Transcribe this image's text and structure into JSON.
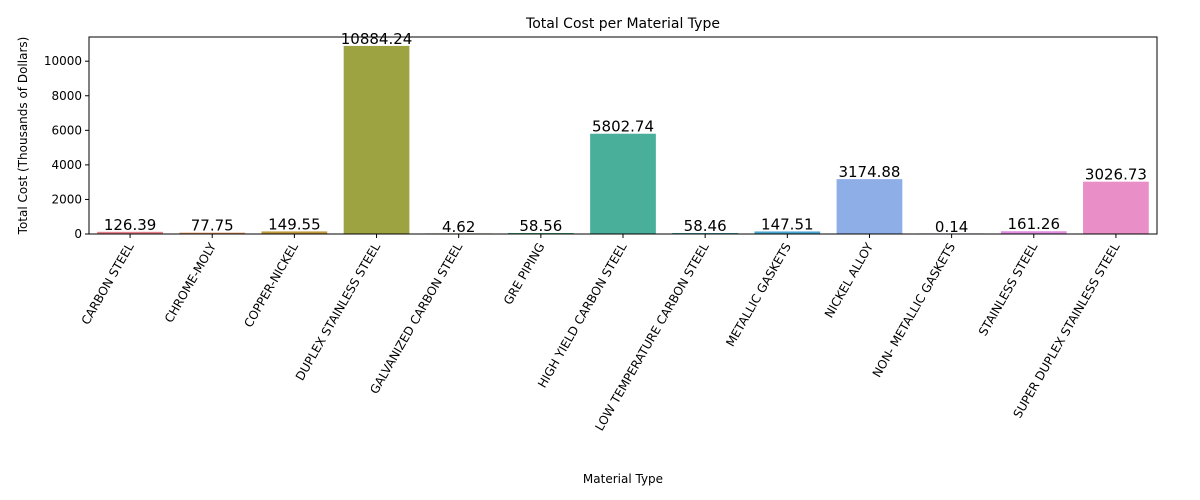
{
  "chart_data": {
    "type": "bar",
    "title": "Total Cost per Material Type",
    "xlabel": "Material Type",
    "ylabel": "Total Cost (Thousands of Dollars)",
    "ylim": [
      0,
      11400
    ],
    "yticks": [
      0,
      2000,
      4000,
      6000,
      8000,
      10000
    ],
    "grid": false,
    "categories": [
      "CARBON STEEL",
      "CHROME-MOLY",
      "COPPER-NICKEL",
      "DUPLEX STAINLESS STEEL",
      "GALVANIZED CARBON STEEL",
      "GRE PIPING",
      "HIGH YIELD CARBON STEEL",
      "LOW TEMPERATURE CARBON STEEL",
      "METALLIC GASKETS",
      "NICKEL ALLOY",
      "NON- METALLIC GASKETS",
      "STAINLESS STEEL",
      "SUPER DUPLEX STAINLESS STEEL"
    ],
    "values": [
      126.39,
      77.75,
      149.55,
      10884.24,
      4.62,
      58.56,
      5802.74,
      58.46,
      147.51,
      3174.88,
      0.14,
      161.26,
      3026.73
    ],
    "data_labels": [
      "126.39",
      "77.75",
      "149.55",
      "10884.24",
      "4.62",
      "58.56",
      "5802.74",
      "58.46",
      "147.51",
      "3174.88",
      "0.14",
      "161.26",
      "3026.73"
    ],
    "colors": [
      "#e8808a",
      "#d9905a",
      "#c09a3c",
      "#9ea342",
      "#7aae3f",
      "#45b07c",
      "#4aaf9a",
      "#46aab3",
      "#4aa7cf",
      "#8eaee8",
      "#bc9cee",
      "#df8ee0",
      "#e98ec6"
    ]
  }
}
